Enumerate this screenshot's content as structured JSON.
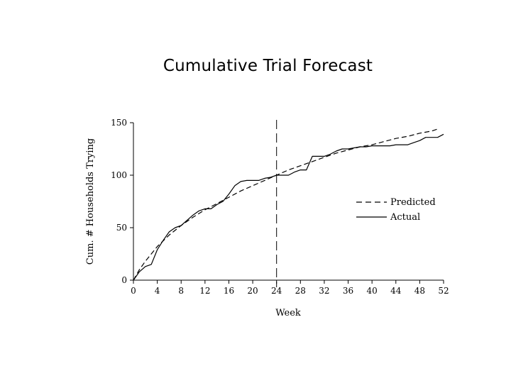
{
  "chart_data": {
    "type": "line",
    "title": "Cumulative Trial Forecast",
    "xlabel": "Week",
    "ylabel": "Cum. # Households Trying",
    "xlim": [
      0,
      52
    ],
    "ylim": [
      0,
      150
    ],
    "x_ticks": [
      0,
      4,
      8,
      12,
      16,
      20,
      24,
      28,
      32,
      36,
      40,
      44,
      48,
      52
    ],
    "y_ticks": [
      0,
      50,
      100,
      150
    ],
    "grid": false,
    "legend_position": "right",
    "reference_line": {
      "x": 24,
      "style": "dashed"
    },
    "series": [
      {
        "name": "Predicted",
        "style": "dashed",
        "x": [
          0,
          1,
          2,
          3,
          4,
          6,
          8,
          10,
          12,
          14,
          16,
          18,
          20,
          22,
          24,
          26,
          28,
          30,
          32,
          34,
          36,
          38,
          40,
          42,
          44,
          46,
          48,
          50,
          51
        ],
        "values": [
          0,
          10,
          18,
          25,
          32,
          43,
          52,
          60,
          67,
          73,
          79,
          85,
          90,
          95,
          100,
          105,
          109,
          113,
          117,
          121,
          124,
          127,
          129,
          132,
          135,
          137,
          140,
          142,
          144
        ]
      },
      {
        "name": "Actual",
        "style": "solid",
        "x": [
          0,
          1,
          2,
          3,
          4,
          5,
          6,
          7,
          8,
          9,
          10,
          11,
          12,
          13,
          14,
          15,
          16,
          17,
          18,
          19,
          20,
          21,
          22,
          23,
          24,
          25,
          26,
          27,
          28,
          29,
          30,
          31,
          32,
          33,
          34,
          35,
          36,
          37,
          38,
          39,
          40,
          41,
          42,
          43,
          44,
          45,
          46,
          47,
          48,
          49,
          50,
          51,
          52
        ],
        "values": [
          0,
          8,
          13,
          15,
          29,
          38,
          46,
          50,
          52,
          57,
          62,
          66,
          68,
          68,
          72,
          75,
          82,
          90,
          94,
          95,
          95,
          95,
          97,
          98,
          100,
          100,
          100,
          103,
          105,
          105,
          118,
          118,
          118,
          120,
          123,
          125,
          125,
          126,
          127,
          127,
          128,
          128,
          128,
          128,
          129,
          129,
          129,
          131,
          133,
          136,
          136,
          136,
          139
        ]
      }
    ]
  }
}
